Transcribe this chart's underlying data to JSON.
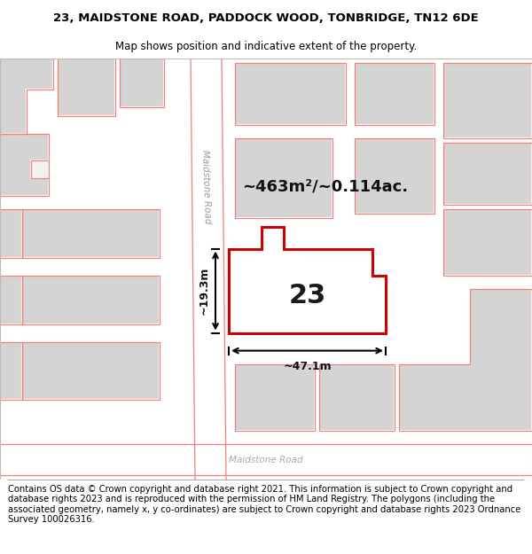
{
  "title": "23, MAIDSTONE ROAD, PADDOCK WOOD, TONBRIDGE, TN12 6DE",
  "subtitle": "Map shows position and indicative extent of the property.",
  "footer": "Contains OS data © Crown copyright and database right 2021. This information is subject to Crown copyright and database rights 2023 and is reproduced with the permission of HM Land Registry. The polygons (including the associated geometry, namely x, y co-ordinates) are subject to Crown copyright and database rights 2023 Ordnance Survey 100026316.",
  "title_fontsize": 9.5,
  "subtitle_fontsize": 8.5,
  "footer_fontsize": 7.2,
  "map_bg": "#f2f2f2",
  "building_fill": "#d4d4d4",
  "road_fill": "#ffffff",
  "highlight_color": "#cc0000",
  "area_label": "~463m²/~0.114ac.",
  "number_label": "23",
  "dim_height": "~19.3m",
  "dim_width": "~47.1m",
  "road_label_top": "Maidstone Road",
  "road_label_bottom": "Maidstone Road",
  "light_red": "#f08080",
  "title_border_color": "#999999"
}
